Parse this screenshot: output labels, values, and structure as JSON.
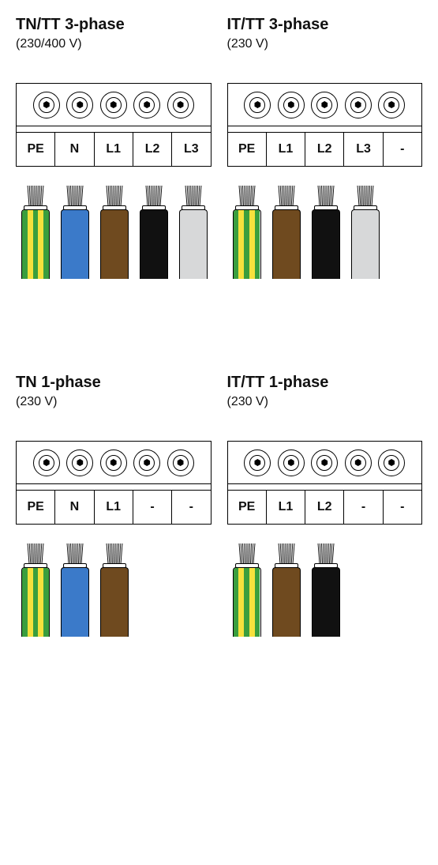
{
  "colors": {
    "green": "#3a9e3e",
    "yellow": "#f6e13d",
    "blue": "#3b7ac9",
    "brown": "#6f4a1f",
    "black": "#111111",
    "grey": "#d7d8d9",
    "border": "#000000",
    "white": "#ffffff"
  },
  "pe_stripes": [
    "green",
    "yellow",
    "green",
    "yellow",
    "green"
  ],
  "panels": [
    {
      "title": "TN/TT 3-phase",
      "subtitle": "(230/400 V)",
      "labels": [
        "PE",
        "N",
        "L1",
        "L2",
        "L3"
      ],
      "wires": [
        {
          "type": "pe"
        },
        {
          "type": "solid",
          "colorKey": "blue"
        },
        {
          "type": "solid",
          "colorKey": "brown"
        },
        {
          "type": "solid",
          "colorKey": "black"
        },
        {
          "type": "solid",
          "colorKey": "grey"
        }
      ]
    },
    {
      "title": "IT/TT 3-phase",
      "subtitle": "(230 V)",
      "labels": [
        "PE",
        "L1",
        "L2",
        "L3",
        "-"
      ],
      "wires": [
        {
          "type": "pe"
        },
        {
          "type": "solid",
          "colorKey": "brown"
        },
        {
          "type": "solid",
          "colorKey": "black"
        },
        {
          "type": "solid",
          "colorKey": "grey"
        }
      ]
    },
    {
      "title": "TN 1-phase",
      "subtitle": "(230 V)",
      "labels": [
        "PE",
        "N",
        "L1",
        "-",
        "-"
      ],
      "wires": [
        {
          "type": "pe"
        },
        {
          "type": "solid",
          "colorKey": "blue"
        },
        {
          "type": "solid",
          "colorKey": "brown"
        }
      ]
    },
    {
      "title": "IT/TT 1-phase",
      "subtitle": "(230 V)",
      "labels": [
        "PE",
        "L1",
        "L2",
        "-",
        "-"
      ],
      "wires": [
        {
          "type": "pe"
        },
        {
          "type": "solid",
          "colorKey": "brown"
        },
        {
          "type": "solid",
          "colorKey": "black"
        }
      ]
    }
  ]
}
